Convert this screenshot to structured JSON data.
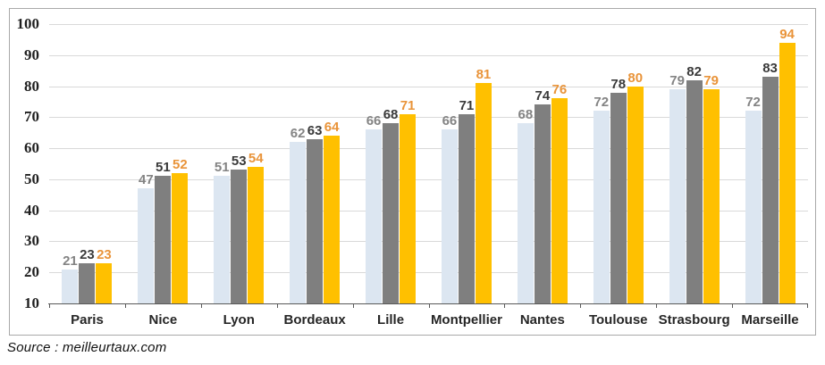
{
  "chart_data": {
    "type": "bar",
    "title": "",
    "xlabel": "",
    "ylabel": "",
    "categories": [
      "Paris",
      "Nice",
      "Lyon",
      "Bordeaux",
      "Lille",
      "Montpellier",
      "Nantes",
      "Toulouse",
      "Strasbourg",
      "Marseille"
    ],
    "series": [
      {
        "name": "series-light-blue",
        "color": "#dce6f1",
        "label_color": "#848484",
        "values": [
          21,
          47,
          51,
          62,
          66,
          66,
          68,
          72,
          79,
          72
        ]
      },
      {
        "name": "series-gray",
        "color": "#7f7f7f",
        "label_color": "#3a3a3a",
        "values": [
          23,
          51,
          53,
          63,
          68,
          71,
          74,
          78,
          82,
          83
        ]
      },
      {
        "name": "series-gold",
        "color": "#ffc000",
        "label_color": "#e9943a",
        "values": [
          23,
          52,
          54,
          64,
          71,
          81,
          76,
          80,
          79,
          94
        ]
      }
    ],
    "ylim": [
      10,
      100
    ],
    "yticks": [
      100,
      90,
      80,
      70,
      60,
      50,
      40,
      30,
      20,
      10
    ],
    "grid": true,
    "legend_position": "none",
    "data_labels": "outside-end"
  },
  "footer": {
    "source_text": "Source : meilleurtaux.com"
  }
}
